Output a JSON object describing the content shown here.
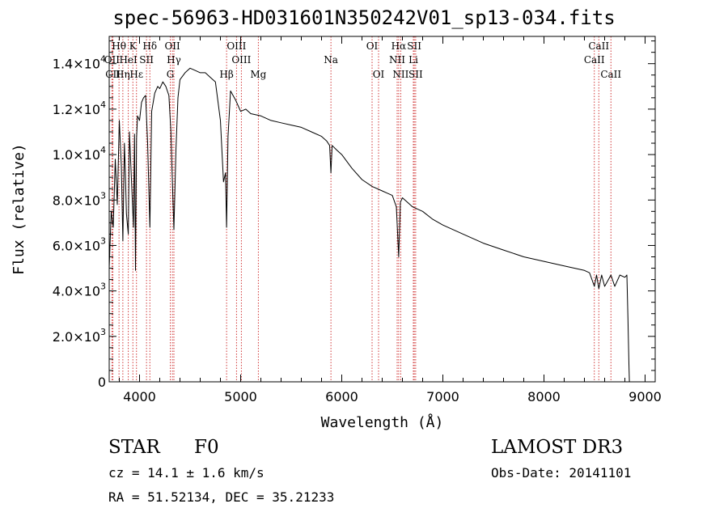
{
  "chart_data": {
    "type": "line",
    "title": "spec-56963-HD031601N350242V01_sp13-034.fits",
    "xlabel": "Wavelength (Å)",
    "ylabel": "Flux (relative)",
    "xlim": [
      3700,
      9100
    ],
    "ylim": [
      0,
      15200
    ],
    "x_ticks": [
      {
        "value": 4000,
        "label": "4000"
      },
      {
        "value": 5000,
        "label": "5000"
      },
      {
        "value": 6000,
        "label": "6000"
      },
      {
        "value": 7000,
        "label": "7000"
      },
      {
        "value": 8000,
        "label": "8000"
      },
      {
        "value": 9000,
        "label": "9000"
      }
    ],
    "y_ticks": [
      {
        "value": 0,
        "mant": "0",
        "exp": ""
      },
      {
        "value": 2000,
        "mant": "2.0×10",
        "exp": "3"
      },
      {
        "value": 4000,
        "mant": "4.0×10",
        "exp": "3"
      },
      {
        "value": 6000,
        "mant": "6.0×10",
        "exp": "3"
      },
      {
        "value": 8000,
        "mant": "8.0×10",
        "exp": "3"
      },
      {
        "value": 10000,
        "mant": "1.0×10",
        "exp": "4"
      },
      {
        "value": 12000,
        "mant": "1.2×10",
        "exp": "4"
      },
      {
        "value": 14000,
        "mant": "1.4×10",
        "exp": "4"
      }
    ],
    "series": [
      {
        "name": "spectrum",
        "x": [
          3700,
          3720,
          3740,
          3760,
          3780,
          3800,
          3820,
          3835,
          3850,
          3860,
          3870,
          3889,
          3900,
          3920,
          3940,
          3950,
          3960,
          3970,
          3980,
          4000,
          4020,
          4040,
          4060,
          4080,
          4102,
          4120,
          4150,
          4180,
          4200,
          4230,
          4260,
          4290,
          4310,
          4320,
          4340,
          4360,
          4380,
          4400,
          4450,
          4500,
          4550,
          4600,
          4650,
          4700,
          4750,
          4800,
          4830,
          4850,
          4861,
          4875,
          4900,
          4950,
          5000,
          5050,
          5100,
          5150,
          5200,
          5300,
          5400,
          5500,
          5600,
          5700,
          5800,
          5850,
          5880,
          5893,
          5905,
          5950,
          6000,
          6100,
          6200,
          6300,
          6400,
          6450,
          6500,
          6540,
          6563,
          6580,
          6600,
          6650,
          6700,
          6800,
          6900,
          7000,
          7200,
          7400,
          7600,
          7800,
          8000,
          8200,
          8400,
          8450,
          8498,
          8520,
          8542,
          8570,
          8600,
          8662,
          8700,
          8750,
          8800,
          8820,
          8830,
          8840,
          8845
        ],
        "y": [
          5000,
          7500,
          6800,
          9800,
          7800,
          11500,
          9500,
          6200,
          10500,
          9200,
          7400,
          6500,
          11000,
          8900,
          6800,
          10900,
          4900,
          10700,
          11700,
          11500,
          12300,
          12500,
          12600,
          10500,
          6800,
          11900,
          12700,
          13000,
          12900,
          13200,
          13000,
          12600,
          11000,
          9500,
          6700,
          10200,
          12500,
          13300,
          13600,
          13800,
          13700,
          13600,
          13600,
          13400,
          13200,
          11500,
          8800,
          9200,
          6800,
          10800,
          12800,
          12400,
          11900,
          12000,
          11800,
          11750,
          11700,
          11500,
          11400,
          11300,
          11200,
          11000,
          10800,
          10600,
          10400,
          9200,
          10400,
          10200,
          10000,
          9400,
          8900,
          8600,
          8400,
          8300,
          8200,
          7700,
          5500,
          7900,
          8100,
          7900,
          7700,
          7500,
          7150,
          6900,
          6500,
          6100,
          5800,
          5500,
          5300,
          5100,
          4900,
          4800,
          4200,
          4700,
          4100,
          4700,
          4200,
          4700,
          4200,
          4700,
          4600,
          4700,
          2800,
          800,
          0
        ]
      }
    ],
    "lines": [
      {
        "label": "Hθ",
        "x": 3797,
        "row": 0
      },
      {
        "label": "OII",
        "x": 3727,
        "row": 1
      },
      {
        "label": "CII",
        "x": 3737,
        "row": 2
      },
      {
        "label": "Hη",
        "x": 3835,
        "row": 2
      },
      {
        "label": "HeI",
        "x": 3889,
        "row": 1
      },
      {
        "label": "Hε",
        "x": 3970,
        "row": 2
      },
      {
        "label": "K",
        "x": 3934,
        "row": 0
      },
      {
        "label": "SII",
        "x": 4069,
        "row": 1
      },
      {
        "label": "Hδ",
        "x": 4102,
        "row": 0
      },
      {
        "label": "OII",
        "x": 4325,
        "row": 0
      },
      {
        "label": "G",
        "x": 4304,
        "row": 2
      },
      {
        "label": "Hγ",
        "x": 4340,
        "row": 1
      },
      {
        "label": "OIII",
        "x": 4959,
        "row": 0
      },
      {
        "label": "OIII",
        "x": 5007,
        "row": 1
      },
      {
        "label": "Hβ",
        "x": 4861,
        "row": 2
      },
      {
        "label": "Mg",
        "x": 5175,
        "row": 2
      },
      {
        "label": "Na",
        "x": 5893,
        "row": 1
      },
      {
        "label": "OI",
        "x": 6300,
        "row": 0
      },
      {
        "label": "OI",
        "x": 6364,
        "row": 2
      },
      {
        "label": "Hα",
        "x": 6563,
        "row": 0
      },
      {
        "label": "NII",
        "x": 6548,
        "row": 1
      },
      {
        "label": "NII",
        "x": 6583,
        "row": 2
      },
      {
        "label": "SII",
        "x": 6717,
        "row": 0
      },
      {
        "label": "Li",
        "x": 6708,
        "row": 1
      },
      {
        "label": "SII",
        "x": 6731,
        "row": 2
      },
      {
        "label": "CaII",
        "x": 8542,
        "row": 0
      },
      {
        "label": "CaII",
        "x": 8498,
        "row": 1
      },
      {
        "label": "CaII",
        "x": 8662,
        "row": 2
      }
    ]
  },
  "info": {
    "star_label": "STAR",
    "spectral_type": "F0",
    "survey": "LAMOST DR3",
    "cz": "cz = 14.1 ± 1.6 km/s",
    "obs_date": "Obs-Date: 20141101",
    "radec": "RA =  51.52134, DEC =  35.21233"
  }
}
